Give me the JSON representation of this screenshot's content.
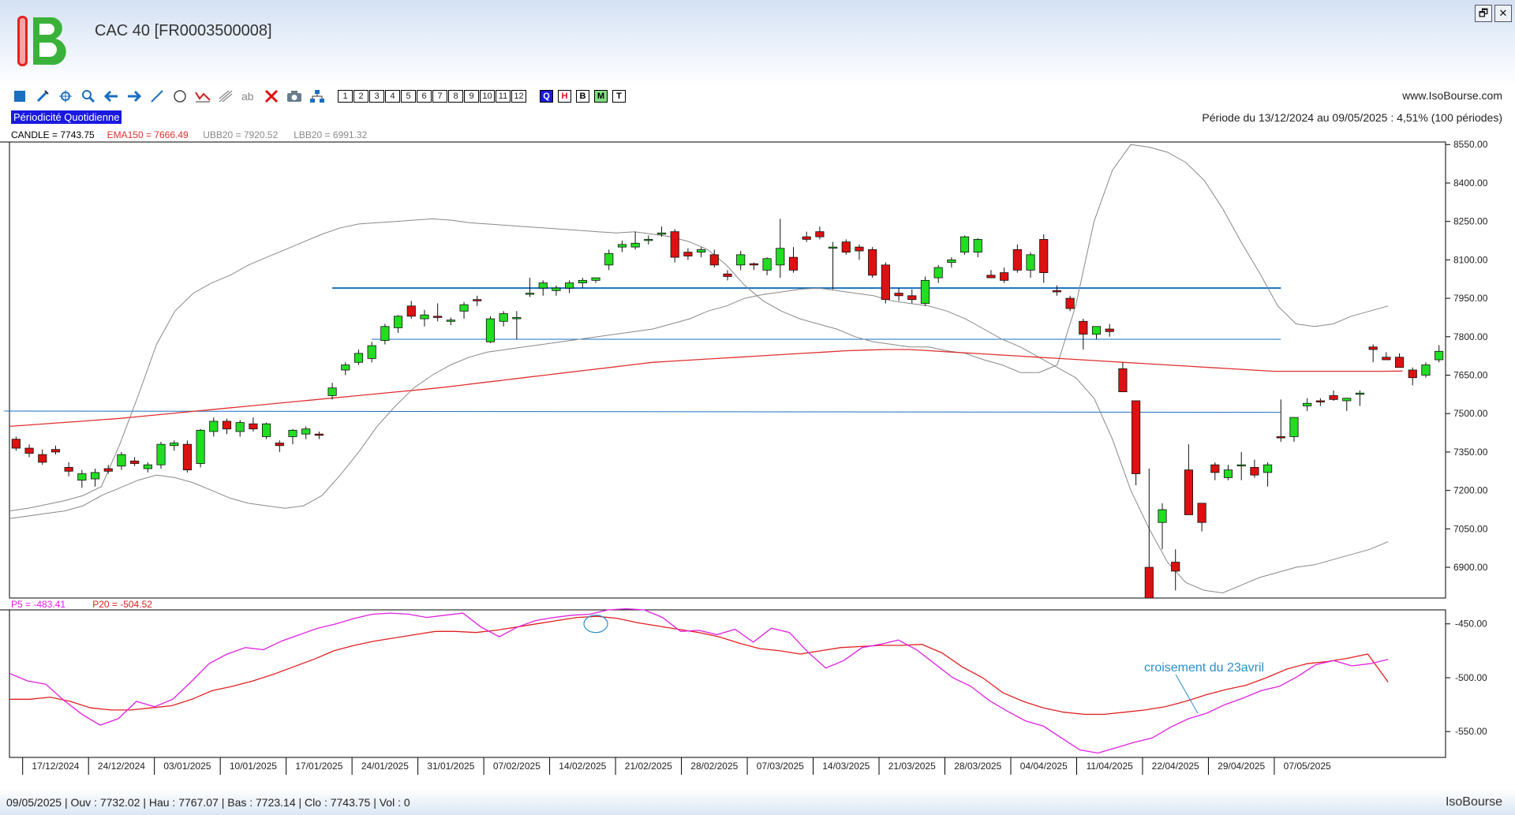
{
  "window": {
    "title": "CAC 40 [FR0003500008]",
    "site": "www.IsoBourse.com",
    "restore_label": "🗗",
    "close_label": "✕"
  },
  "toolbar": {
    "numbers": [
      "1",
      "2",
      "3",
      "4",
      "5",
      "6",
      "7",
      "8",
      "9",
      "10",
      "11",
      "12"
    ],
    "letters": [
      {
        "label": "Q",
        "bg": "#1a1ae0",
        "fg": "#ffffff"
      },
      {
        "label": "H",
        "bg": "#ffffff",
        "fg": "#e01010"
      },
      {
        "label": "B",
        "bg": "#ffffff",
        "fg": "#000000"
      },
      {
        "label": "M",
        "bg": "#7fe07f",
        "fg": "#000000"
      },
      {
        "label": "T",
        "bg": "#ffffff",
        "fg": "#000000"
      }
    ],
    "icons": [
      "square-icon",
      "pen-icon",
      "crosshair-icon",
      "zoom-icon",
      "arrow-left-icon",
      "arrow-right-icon",
      "line-icon",
      "circle-icon",
      "indicator-icon",
      "fibonacci-icon",
      "text-icon",
      "delete-icon",
      "camera-icon",
      "tree-icon"
    ]
  },
  "periodicity": "Périodicité Quotidienne",
  "period_info": "Période du 13/12/2024 au 09/05/2025 : 4,51% (100 périodes)",
  "status": "09/05/2025 | Ouv : 7732.02 | Hau : 7767.07 | Bas : 7723.14 | Clo : 7743.75 | Vol : 0",
  "brand": "IsoBourse",
  "colors": {
    "up": "#22dd22",
    "down": "#dd1111",
    "ema": "#e03030",
    "bollinger": "#888888",
    "hline": "#1a6fc0",
    "p5": "#e020e0",
    "p20": "#e02020",
    "annot": "#2a8fc8"
  },
  "chart_data": [
    {
      "type": "candlestick",
      "panel": "price",
      "legend": [
        {
          "label": "CANDLE = 7743.75",
          "color": "#000000"
        },
        {
          "label": "EMA150 = 7666.49",
          "color": "#e03030"
        },
        {
          "label": "UBB20 = 7920.52",
          "color": "#888888"
        },
        {
          "label": "LBB20 = 6991.32",
          "color": "#888888"
        }
      ],
      "x_labels": [
        "17/12/2024",
        "24/12/2024",
        "03/01/2025",
        "10/01/2025",
        "17/01/2025",
        "24/01/2025",
        "31/01/2025",
        "07/02/2025",
        "14/02/2025",
        "21/02/2025",
        "28/02/2025",
        "07/03/2025",
        "14/03/2025",
        "21/03/2025",
        "28/03/2025",
        "04/04/2025",
        "11/04/2025",
        "22/04/2025",
        "29/04/2025",
        "07/05/2025"
      ],
      "x_label_index": [
        3,
        8,
        13,
        18,
        23,
        28,
        33,
        38,
        43,
        48,
        53,
        58,
        63,
        68,
        73,
        78,
        83,
        88,
        93,
        98
      ],
      "y_ticks": [
        8550,
        8400,
        8250,
        8100,
        7950,
        7800,
        7650,
        7500,
        7350,
        7200,
        7050,
        6900
      ],
      "ylim": [
        6780,
        8560
      ],
      "candles": [
        [
          7400,
          7410,
          7355,
          7365
        ],
        [
          7365,
          7380,
          7330,
          7345
        ],
        [
          7340,
          7360,
          7300,
          7310
        ],
        [
          7360,
          7375,
          7340,
          7350
        ],
        [
          7290,
          7310,
          7255,
          7275
        ],
        [
          7240,
          7280,
          7210,
          7265
        ],
        [
          7245,
          7285,
          7215,
          7270
        ],
        [
          7285,
          7300,
          7265,
          7275
        ],
        [
          7295,
          7350,
          7280,
          7340
        ],
        [
          7315,
          7330,
          7295,
          7305
        ],
        [
          7285,
          7310,
          7270,
          7300
        ],
        [
          7300,
          7390,
          7285,
          7380
        ],
        [
          7375,
          7395,
          7355,
          7385
        ],
        [
          7380,
          7395,
          7270,
          7280
        ],
        [
          7305,
          7440,
          7290,
          7435
        ],
        [
          7430,
          7485,
          7410,
          7470
        ],
        [
          7470,
          7480,
          7420,
          7440
        ],
        [
          7430,
          7475,
          7410,
          7465
        ],
        [
          7460,
          7485,
          7430,
          7440
        ],
        [
          7410,
          7465,
          7400,
          7460
        ],
        [
          7385,
          7395,
          7350,
          7375
        ],
        [
          7410,
          7440,
          7380,
          7435
        ],
        [
          7420,
          7450,
          7400,
          7440
        ],
        [
          7420,
          7430,
          7400,
          7415
        ],
        [
          7570,
          7620,
          7555,
          7600
        ],
        [
          7670,
          7700,
          7650,
          7690
        ],
        [
          7700,
          7750,
          7690,
          7735
        ],
        [
          7715,
          7780,
          7700,
          7765
        ],
        [
          7785,
          7850,
          7770,
          7840
        ],
        [
          7835,
          7885,
          7815,
          7880
        ],
        [
          7920,
          7940,
          7870,
          7880
        ],
        [
          7870,
          7905,
          7840,
          7885
        ],
        [
          7880,
          7930,
          7860,
          7875
        ],
        [
          7860,
          7875,
          7845,
          7865
        ],
        [
          7900,
          7935,
          7870,
          7925
        ],
        [
          7945,
          7960,
          7920,
          7940
        ],
        [
          7780,
          7880,
          7775,
          7870
        ],
        [
          7860,
          7900,
          7840,
          7890
        ],
        [
          7870,
          7900,
          7790,
          7875
        ],
        [
          7970,
          8030,
          7955,
          7970
        ],
        [
          7990,
          8020,
          7960,
          8010
        ],
        [
          7980,
          8000,
          7960,
          7990
        ],
        [
          7990,
          8020,
          7970,
          8010
        ],
        [
          8010,
          8030,
          7990,
          8020
        ],
        [
          8020,
          8030,
          8010,
          8030
        ],
        [
          8080,
          8140,
          8060,
          8125
        ],
        [
          8150,
          8175,
          8130,
          8160
        ],
        [
          8150,
          8210,
          8140,
          8165
        ],
        [
          8180,
          8195,
          8160,
          8180
        ],
        [
          8200,
          8230,
          8190,
          8205
        ],
        [
          8210,
          8220,
          8090,
          8110
        ],
        [
          8130,
          8145,
          8100,
          8115
        ],
        [
          8130,
          8150,
          8110,
          8140
        ],
        [
          8120,
          8140,
          8070,
          8080
        ],
        [
          8045,
          8060,
          8020,
          8035
        ],
        [
          8080,
          8135,
          8060,
          8120
        ],
        [
          8085,
          8090,
          8060,
          8080
        ],
        [
          8060,
          8110,
          8040,
          8105
        ],
        [
          8080,
          8260,
          8030,
          8145
        ],
        [
          8110,
          8150,
          8050,
          8060
        ],
        [
          8190,
          8210,
          8170,
          8180
        ],
        [
          8210,
          8230,
          8180,
          8190
        ],
        [
          8150,
          8170,
          7985,
          8150
        ],
        [
          8170,
          8180,
          8120,
          8130
        ],
        [
          8150,
          8160,
          8100,
          8135
        ],
        [
          8140,
          8150,
          8030,
          8040
        ],
        [
          8080,
          8090,
          7930,
          7945
        ],
        [
          7970,
          7990,
          7940,
          7960
        ],
        [
          7960,
          7985,
          7930,
          7945
        ],
        [
          7930,
          8035,
          7920,
          8020
        ],
        [
          8030,
          8080,
          8010,
          8070
        ],
        [
          8090,
          8110,
          8070,
          8100
        ],
        [
          8130,
          8195,
          8120,
          8190
        ],
        [
          8130,
          8185,
          8110,
          8180
        ],
        [
          8040,
          8060,
          8030,
          8030
        ],
        [
          8050,
          8070,
          8010,
          8020
        ],
        [
          8140,
          8160,
          8050,
          8060
        ],
        [
          8060,
          8130,
          8030,
          8120
        ],
        [
          8180,
          8200,
          8010,
          8050
        ],
        [
          7980,
          8000,
          7960,
          7975
        ],
        [
          7950,
          7960,
          7900,
          7910
        ],
        [
          7860,
          7870,
          7750,
          7810
        ],
        [
          7810,
          7840,
          7790,
          7840
        ],
        [
          7830,
          7850,
          7800,
          7820
        ],
        [
          7675,
          7700,
          7590,
          7585
        ],
        [
          7550,
          7550,
          7220,
          7265
        ],
        [
          6900,
          7285,
          6785,
          6780
        ],
        [
          7075,
          7150,
          6970,
          7125
        ],
        [
          6920,
          6970,
          6810,
          6885
        ],
        [
          7280,
          7380,
          7110,
          7105
        ],
        [
          7150,
          7150,
          7040,
          7075
        ],
        [
          7300,
          7310,
          7240,
          7270
        ],
        [
          7250,
          7300,
          7240,
          7280
        ],
        [
          7300,
          7350,
          7240,
          7300
        ],
        [
          7290,
          7320,
          7250,
          7260
        ],
        [
          7270,
          7310,
          7215,
          7300
        ],
        [
          7410,
          7555,
          7390,
          7405
        ],
        [
          7410,
          7480,
          7390,
          7485
        ],
        [
          7530,
          7560,
          7510,
          7540
        ],
        [
          7550,
          7560,
          7530,
          7545
        ],
        [
          7570,
          7590,
          7550,
          7555
        ],
        [
          7550,
          7560,
          7510,
          7560
        ],
        [
          7575,
          7590,
          7530,
          7580
        ],
        [
          7760,
          7770,
          7700,
          7750
        ],
        [
          7720,
          7740,
          7710,
          7710
        ],
        [
          7720,
          7735,
          7680,
          7680
        ],
        [
          7670,
          7680,
          7610,
          7640
        ],
        [
          7650,
          7700,
          7640,
          7690
        ],
        [
          7710,
          7767,
          7700,
          7743
        ]
      ],
      "ema150": [
        7450,
        7456,
        7462,
        7468,
        7474,
        7480,
        7488,
        7496,
        7504,
        7512,
        7520,
        7528,
        7536,
        7544,
        7552,
        7560,
        7568,
        7576,
        7584,
        7592,
        7600,
        7610,
        7620,
        7630,
        7640,
        7650,
        7660,
        7670,
        7680,
        7690,
        7700,
        7705,
        7710,
        7715,
        7720,
        7725,
        7730,
        7735,
        7740,
        7745,
        7748,
        7750,
        7750,
        7745,
        7740,
        7735,
        7730,
        7725,
        7720,
        7715,
        7710,
        7705,
        7700,
        7695,
        7690,
        7685,
        7680,
        7675,
        7670,
        7665,
        7665,
        7665,
        7665,
        7665,
        7665,
        7666
      ],
      "ubb20": [
        7120,
        7130,
        7145,
        7160,
        7180,
        7215,
        7380,
        7570,
        7770,
        7900,
        7970,
        8010,
        8040,
        8080,
        8110,
        8140,
        8170,
        8200,
        8225,
        8240,
        8245,
        8250,
        8255,
        8260,
        8255,
        8245,
        8240,
        8235,
        8230,
        8225,
        8220,
        8215,
        8210,
        8205,
        8210,
        8200,
        8190,
        8170,
        8140,
        8080,
        8000,
        7940,
        7900,
        7870,
        7850,
        7830,
        7800,
        7780,
        7770,
        7760,
        7760,
        7745,
        7735,
        7710,
        7690,
        7660,
        7660,
        7690,
        7920,
        8250,
        8450,
        8550,
        8540,
        8520,
        8480,
        8410,
        8300,
        8170,
        8050,
        7920,
        7850,
        7840,
        7850,
        7880,
        7900,
        7920
      ],
      "lbb20": [
        7090,
        7100,
        7110,
        7120,
        7140,
        7180,
        7210,
        7240,
        7260,
        7250,
        7230,
        7200,
        7170,
        7150,
        7140,
        7130,
        7140,
        7180,
        7260,
        7350,
        7450,
        7530,
        7600,
        7650,
        7690,
        7720,
        7740,
        7750,
        7760,
        7770,
        7780,
        7790,
        7800,
        7810,
        7820,
        7830,
        7850,
        7870,
        7900,
        7920,
        7950,
        7965,
        7975,
        7985,
        7990,
        7980,
        7970,
        7960,
        7940,
        7930,
        7920,
        7900,
        7870,
        7830,
        7790,
        7760,
        7720,
        7680,
        7640,
        7560,
        7400,
        7200,
        7050,
        6920,
        6840,
        6810,
        6800,
        6830,
        6860,
        6880,
        6900,
        6910,
        6930,
        6950,
        6970,
        7000
      ]
    },
    {
      "type": "line",
      "panel": "indicator",
      "legend": [
        {
          "label": "P5 = -483.41",
          "color": "#e020e0"
        },
        {
          "label": "P20 = -504.52",
          "color": "#e02020"
        }
      ],
      "y_ticks": [
        -450,
        -500,
        -550
      ],
      "ylim": [
        -574,
        -437
      ],
      "annotation": "croisement du 23avril",
      "series": [
        {
          "name": "P5",
          "values": [
            -496,
            -503,
            -506,
            -521,
            -534,
            -544,
            -538,
            -522,
            -527,
            -520,
            -504,
            -487,
            -478,
            -472,
            -474,
            -466,
            -460,
            -454,
            -450,
            -445,
            -441,
            -440,
            -441,
            -444,
            -442,
            -440,
            -453,
            -462,
            -453,
            -447,
            -444,
            -442,
            -441,
            -437,
            -436,
            -437,
            -444,
            -457,
            -456,
            -460,
            -455,
            -467,
            -454,
            -458,
            -476,
            -491,
            -484,
            -472,
            -469,
            -465,
            -474,
            -487,
            -500,
            -508,
            -521,
            -531,
            -540,
            -545,
            -556,
            -567,
            -570,
            -565,
            -560,
            -556,
            -546,
            -538,
            -533,
            -525,
            -519,
            -512,
            -508,
            -499,
            -488,
            -484,
            -489,
            -487,
            -483
          ]
        },
        {
          "name": "P20",
          "values": [
            -520,
            -520,
            -518,
            -522,
            -528,
            -530,
            -530,
            -528,
            -526,
            -520,
            -512,
            -508,
            -503,
            -497,
            -490,
            -483,
            -475,
            -470,
            -466,
            -463,
            -460,
            -457,
            -457,
            -458,
            -456,
            -453,
            -450,
            -447,
            -444,
            -443,
            -445,
            -449,
            -452,
            -455,
            -458,
            -462,
            -468,
            -473,
            -475,
            -478,
            -475,
            -472,
            -471,
            -470,
            -470,
            -469,
            -477,
            -490,
            -500,
            -514,
            -522,
            -528,
            -532,
            -534,
            -534,
            -532,
            -530,
            -527,
            -522,
            -516,
            -511,
            -507,
            -500,
            -492,
            -487,
            -485,
            -482,
            -478,
            -504
          ]
        }
      ]
    }
  ]
}
